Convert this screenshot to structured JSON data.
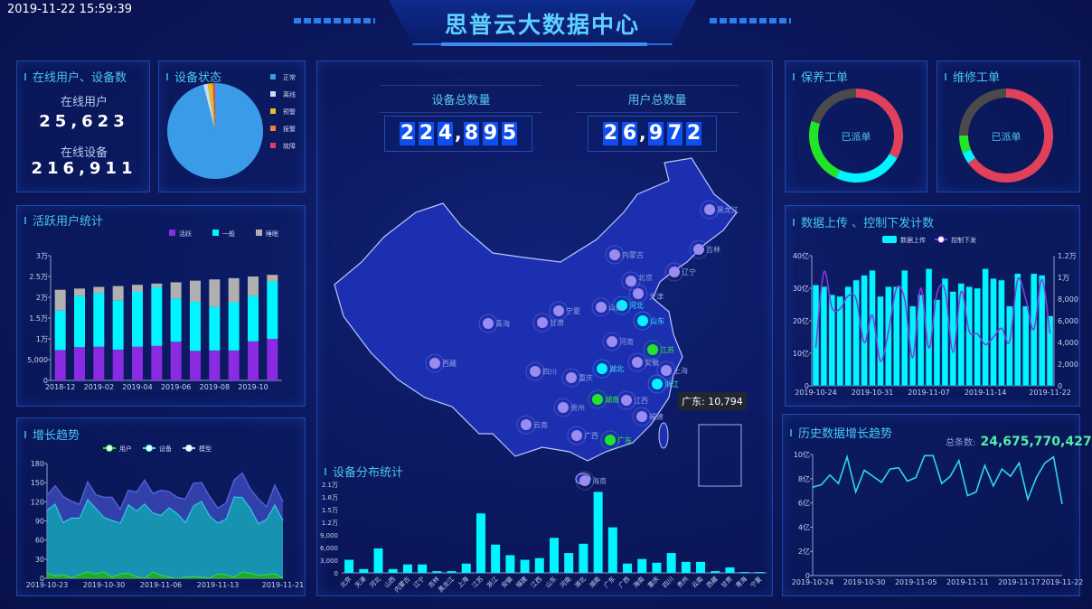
{
  "header": {
    "timestamp": "2019-11-22 15:59:39",
    "title": "思普云大数据中心"
  },
  "colors": {
    "accent": "#47c6f2",
    "cyan": "#00f5ff",
    "purple": "#8a2be2",
    "gray": "#b0b0b0",
    "green": "#22e52a",
    "red": "#e0405a",
    "marker": "#9c8cf0"
  },
  "online": {
    "title": "在线用户、设备数",
    "users_label": "在线用户",
    "users_value": "25,623",
    "devices_label": "在线设备",
    "devices_value": "216,911"
  },
  "device_status": {
    "title": "设备状态"
  },
  "center": {
    "devices_label": "设备总数量",
    "devices_digits": [
      "2",
      "2",
      "4",
      ",",
      "8",
      "9",
      "5"
    ],
    "users_label": "用户总数量",
    "users_digits": [
      "2",
      "6",
      ",",
      "9",
      "7",
      "2"
    ]
  },
  "map": {
    "tooltip": "广东: 10,794",
    "markers": [
      {
        "name": "黑龙江",
        "state": "normal"
      },
      {
        "name": "吉林",
        "state": "normal"
      },
      {
        "name": "辽宁",
        "state": "normal"
      },
      {
        "name": "内蒙古",
        "state": "normal"
      },
      {
        "name": "北京",
        "state": "normal"
      },
      {
        "name": "天津",
        "state": "normal"
      },
      {
        "name": "河北",
        "state": "mid"
      },
      {
        "name": "山西",
        "state": "normal"
      },
      {
        "name": "宁夏",
        "state": "normal"
      },
      {
        "name": "甘肃",
        "state": "normal"
      },
      {
        "name": "青海",
        "state": "normal"
      },
      {
        "name": "山东",
        "state": "mid"
      },
      {
        "name": "河南",
        "state": "normal"
      },
      {
        "name": "江苏",
        "state": "high"
      },
      {
        "name": "安徽",
        "state": "normal"
      },
      {
        "name": "上海",
        "state": "normal"
      },
      {
        "name": "湖北",
        "state": "mid"
      },
      {
        "name": "浙江",
        "state": "mid"
      },
      {
        "name": "重庆",
        "state": "normal"
      },
      {
        "name": "四川",
        "state": "normal"
      },
      {
        "name": "西藏",
        "state": "normal"
      },
      {
        "name": "湖南",
        "state": "high"
      },
      {
        "name": "江西",
        "state": "normal"
      },
      {
        "name": "福建",
        "state": "normal"
      },
      {
        "name": "贵州",
        "state": "normal"
      },
      {
        "name": "云南",
        "state": "normal"
      },
      {
        "name": "广西",
        "state": "normal"
      },
      {
        "name": "广东",
        "state": "high"
      },
      {
        "name": "海南",
        "state": "normal"
      }
    ]
  },
  "maintenance": {
    "title": "保养工单",
    "center_label": "已派单"
  },
  "repair": {
    "title": "维修工单",
    "center_label": "已派单"
  },
  "chart_data": [
    {
      "id": "device-status",
      "type": "pie",
      "legend": [
        "正常",
        "离线",
        "预警",
        "报警",
        "故障"
      ],
      "values": [
        96,
        1.5,
        1.5,
        0.5,
        0.5
      ],
      "colors": [
        "#3a9be8",
        "#c8dcf5",
        "#e8c020",
        "#f08040",
        "#e04060"
      ],
      "legend_position": "right"
    },
    {
      "id": "active-users",
      "type": "bar",
      "stacked": true,
      "title": "活跃用户统计",
      "categories": [
        "2018-12",
        "2019-01",
        "2019-02",
        "2019-03",
        "2019-04",
        "2019-05",
        "2019-06",
        "2019-07",
        "2019-08",
        "2019-09",
        "2019-10",
        "2019-11"
      ],
      "xticks": [
        "2018-12",
        "2019-02",
        "2019-04",
        "2019-06",
        "2019-08",
        "2019-10"
      ],
      "yticks": [
        "0",
        "5,000",
        "1万",
        "1.5万",
        "2万",
        "2.5万",
        "3万"
      ],
      "ylim": [
        0,
        30000
      ],
      "legend_position": "top-right",
      "series": [
        {
          "name": "活跃",
          "color": "#8a2be2",
          "values": [
            7300,
            8000,
            8100,
            7400,
            8100,
            8300,
            9300,
            7100,
            7200,
            7200,
            9400,
            10000
          ]
        },
        {
          "name": "一般",
          "color": "#00f5ff",
          "values": [
            9500,
            12300,
            12900,
            11800,
            13200,
            14100,
            10400,
            11800,
            10500,
            11600,
            10900,
            13800
          ]
        },
        {
          "name": "睡眠",
          "color": "#b0b0b0",
          "values": [
            5000,
            1800,
            1500,
            3500,
            1700,
            900,
            3900,
            5100,
            6600,
            5800,
            4700,
            1600
          ]
        }
      ]
    },
    {
      "id": "growth",
      "type": "area",
      "stacked": true,
      "title": "增长趋势",
      "xticks": [
        "2019-10-23",
        "2019-10-30",
        "2019-11-06",
        "2019-11-13",
        "2019-11-21"
      ],
      "yticks": [
        "0",
        "30",
        "60",
        "90",
        "120",
        "150",
        "180"
      ],
      "ylim": [
        0,
        180
      ],
      "legend_position": "top",
      "series": [
        {
          "name": "用户",
          "color": "#22c51a",
          "values": [
            8,
            4,
            6,
            1,
            6,
            10,
            7,
            10,
            2,
            7,
            8,
            3,
            0,
            10,
            5,
            2,
            0,
            2,
            3,
            2,
            1,
            7,
            6,
            2,
            10,
            8,
            5,
            6,
            7,
            1
          ]
        },
        {
          "name": "设备",
          "color": "#1aa8c0",
          "values": [
            99,
            113,
            82,
            94,
            89,
            114,
            103,
            86,
            89,
            80,
            108,
            103,
            117,
            93,
            94,
            109,
            102,
            86,
            111,
            119,
            97,
            80,
            87,
            126,
            117,
            102,
            81,
            87,
            109,
            90
          ]
        },
        {
          "name": "模型",
          "color": "#3a48b8",
          "values": [
            23,
            28,
            40,
            26,
            21,
            27,
            21,
            31,
            36,
            21,
            22,
            29,
            37,
            30,
            39,
            25,
            25,
            36,
            35,
            29,
            30,
            23,
            25,
            26,
            38,
            30,
            38,
            19,
            30,
            29
          ]
        }
      ]
    },
    {
      "id": "device-distribution",
      "type": "bar",
      "title": "设备分布统计",
      "ylim": [
        0,
        21000
      ],
      "yticks": [
        "0",
        "3,000",
        "6,000",
        "9,000",
        "1.2万",
        "1.5万",
        "1.8万",
        "2.1万"
      ],
      "categories": [
        "北京",
        "天津",
        "河北",
        "山西",
        "内蒙古",
        "辽宁",
        "吉林",
        "黑龙江",
        "上海",
        "江苏",
        "浙江",
        "安徽",
        "福建",
        "江西",
        "山东",
        "河南",
        "湖北",
        "湖南",
        "广东",
        "广西",
        "海南",
        "重庆",
        "四川",
        "贵州",
        "云南",
        "西藏",
        "甘肃",
        "青海",
        "宁夏"
      ],
      "values": [
        3100,
        900,
        5800,
        900,
        2000,
        2000,
        400,
        400,
        2200,
        14100,
        6700,
        4200,
        3100,
        3500,
        8300,
        4700,
        6900,
        19200,
        10794,
        2200,
        3300,
        2400,
        4700,
        2600,
        2600,
        400,
        1300,
        200,
        200
      ]
    },
    {
      "id": "upload-control",
      "type": "bar+line",
      "title": "数据上传 、控制下发计数",
      "xticks": [
        "2019-10-24",
        "2019-10-31",
        "2019-11-07",
        "2019-11-14",
        "2019-11-22"
      ],
      "yticks_left": [
        "0",
        "10亿",
        "20亿",
        "30亿",
        "40亿"
      ],
      "ylim_left": [
        0,
        40
      ],
      "yticks_right": [
        "0",
        "2,000",
        "4,000",
        "6,000",
        "8,000",
        "1万",
        "1.2万"
      ],
      "ylim_right": [
        0,
        12000
      ],
      "legend_position": "top",
      "series": [
        {
          "name": "数据上传",
          "type": "bar",
          "unit": "亿",
          "color": "#00f5ff",
          "values": [
            31,
            30.5,
            28,
            27.5,
            30.5,
            32.5,
            34,
            35.5,
            27.5,
            30.5,
            30.5,
            35.5,
            24.5,
            28,
            36,
            26.5,
            33,
            29,
            31.5,
            30.5,
            30,
            36,
            33,
            32.5,
            24.5,
            34.5,
            24.5,
            34.5,
            34,
            21.5
          ]
        },
        {
          "name": "控制下发",
          "type": "line",
          "color": "#7b3fe0",
          "values": [
            3500,
            10500,
            7200,
            7100,
            8300,
            8000,
            4000,
            6500,
            2300,
            5000,
            9000,
            8000,
            2600,
            9000,
            3500,
            8500,
            8800,
            3100,
            8700,
            5000,
            4800,
            3800,
            4500,
            5300,
            4100,
            9800,
            8000,
            5200,
            9800,
            4800
          ]
        }
      ]
    },
    {
      "id": "history",
      "type": "line",
      "title": "历史数据增长趋势",
      "total_label": "总条数:",
      "total_value": "24,675,770,427",
      "xticks": [
        "2019-10-24",
        "2019-10-30",
        "2019-11-05",
        "2019-11-11",
        "2019-11-17",
        "2019-11-22"
      ],
      "yticks": [
        "0",
        "2亿",
        "4亿",
        "6亿",
        "8亿",
        "10亿"
      ],
      "ylim": [
        0,
        10
      ],
      "series": [
        {
          "unit": "亿",
          "color": "#2fd8e8",
          "values": [
            7.3,
            7.5,
            8.3,
            7.6,
            9.8,
            6.9,
            8.7,
            8.2,
            7.7,
            8.8,
            8.9,
            7.8,
            8.1,
            9.9,
            9.9,
            7.6,
            8.2,
            9.5,
            6.6,
            6.9,
            9.1,
            7.4,
            8.8,
            8.2,
            9.3,
            6.3,
            8.1,
            9.3,
            9.8,
            5.9
          ]
        }
      ]
    },
    {
      "id": "maintenance-donut",
      "type": "pie",
      "donut": true,
      "values": [
        33,
        24,
        23,
        20
      ],
      "colors": [
        "#e0405a",
        "#00f5ff",
        "#22e52a",
        "#4a4a4a"
      ]
    },
    {
      "id": "repair-donut",
      "type": "pie",
      "donut": true,
      "values": [
        65,
        4,
        6,
        25
      ],
      "colors": [
        "#e0405a",
        "#00f5ff",
        "#22e52a",
        "#4a4a4a"
      ]
    }
  ]
}
